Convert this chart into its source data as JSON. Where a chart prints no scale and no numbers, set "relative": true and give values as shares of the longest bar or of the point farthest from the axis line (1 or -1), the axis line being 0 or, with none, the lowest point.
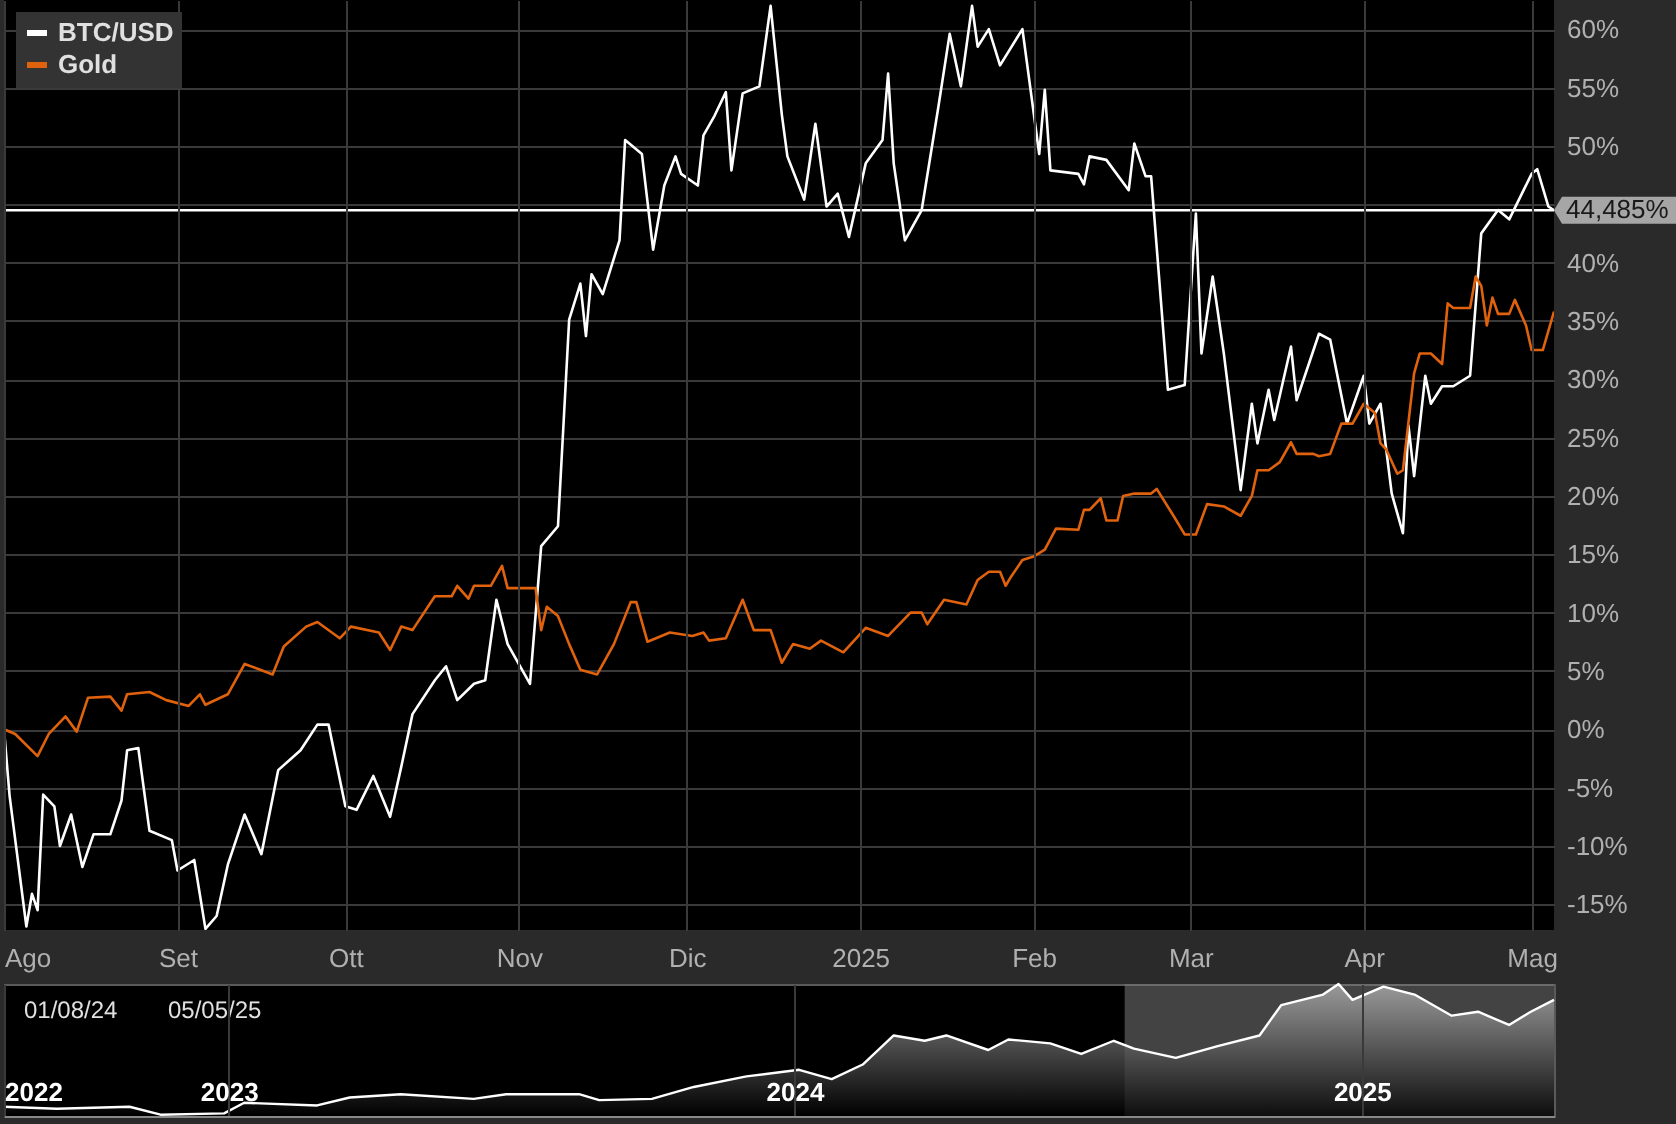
{
  "chart_data": [
    {
      "type": "line",
      "xlim": [
        "2024-08-01",
        "2025-05-05"
      ],
      "ylim": [
        -17.2,
        62.5
      ],
      "xticks": [
        {
          "value": "2024-08-01",
          "label": "Ago"
        },
        {
          "value": "2024-09-01",
          "label": "Set"
        },
        {
          "value": "2024-10-01",
          "label": "Ott"
        },
        {
          "value": "2024-11-01",
          "label": "Nov"
        },
        {
          "value": "2024-12-01",
          "label": "Dic"
        },
        {
          "value": "2025-01-01",
          "label": "2025"
        },
        {
          "value": "2025-02-01",
          "label": "Feb"
        },
        {
          "value": "2025-03-01",
          "label": "Mar"
        },
        {
          "value": "2025-04-01",
          "label": "Apr"
        },
        {
          "value": "2025-05-01",
          "label": "Mag"
        }
      ],
      "yticks": [
        {
          "value": -15,
          "label": "-15%"
        },
        {
          "value": -10,
          "label": "-10%"
        },
        {
          "value": -5,
          "label": "-5%"
        },
        {
          "value": 0,
          "label": "0%"
        },
        {
          "value": 5,
          "label": "5%"
        },
        {
          "value": 10,
          "label": "10%"
        },
        {
          "value": 15,
          "label": "15%"
        },
        {
          "value": 20,
          "label": "20%"
        },
        {
          "value": 25,
          "label": "25%"
        },
        {
          "value": 30,
          "label": "30%"
        },
        {
          "value": 35,
          "label": "35%"
        },
        {
          "value": 40,
          "label": "40%"
        },
        {
          "value": 45,
          "label": null
        },
        {
          "value": 50,
          "label": "50%"
        },
        {
          "value": 55,
          "label": "55%"
        },
        {
          "value": 60,
          "label": "60%"
        }
      ],
      "grid": true,
      "legend": "top left",
      "ref_lines": [
        {
          "axis": "y",
          "value": 44.485,
          "label": "44,485%",
          "color": "#ffffff"
        }
      ],
      "series": [
        {
          "name": "BTC/USD",
          "color": "#ffffff",
          "x": [
            "2024-08-01",
            "2024-08-02",
            "2024-08-05",
            "2024-08-06",
            "2024-08-07",
            "2024-08-08",
            "2024-08-10",
            "2024-08-11",
            "2024-08-13",
            "2024-08-15",
            "2024-08-17",
            "2024-08-20",
            "2024-08-22",
            "2024-08-23",
            "2024-08-25",
            "2024-08-27",
            "2024-08-31",
            "2024-09-01",
            "2024-09-04",
            "2024-09-06",
            "2024-09-08",
            "2024-09-10",
            "2024-09-13",
            "2024-09-16",
            "2024-09-19",
            "2024-09-23",
            "2024-09-26",
            "2024-09-28",
            "2024-10-01",
            "2024-10-03",
            "2024-10-06",
            "2024-10-09",
            "2024-10-11",
            "2024-10-13",
            "2024-10-17",
            "2024-10-19",
            "2024-10-21",
            "2024-10-24",
            "2024-10-26",
            "2024-10-28",
            "2024-10-30",
            "2024-11-03",
            "2024-11-05",
            "2024-11-08",
            "2024-11-10",
            "2024-11-12",
            "2024-11-13",
            "2024-11-14",
            "2024-11-16",
            "2024-11-19",
            "2024-11-20",
            "2024-11-23",
            "2024-11-25",
            "2024-11-27",
            "2024-11-29",
            "2024-11-30",
            "2024-12-03",
            "2024-12-04",
            "2024-12-06",
            "2024-12-08",
            "2024-12-09",
            "2024-12-11",
            "2024-12-14",
            "2024-12-16",
            "2024-12-18",
            "2024-12-19",
            "2024-12-22",
            "2024-12-24",
            "2024-12-26",
            "2024-12-28",
            "2024-12-30",
            "2025-01-02",
            "2025-01-05",
            "2025-01-06",
            "2025-01-07",
            "2025-01-09",
            "2025-01-12",
            "2025-01-15",
            "2025-01-17",
            "2025-01-19",
            "2025-01-21",
            "2025-01-22",
            "2025-01-24",
            "2025-01-26",
            "2025-01-30",
            "2025-02-02",
            "2025-02-03",
            "2025-02-04",
            "2025-02-09",
            "2025-02-10",
            "2025-02-11",
            "2025-02-14",
            "2025-02-18",
            "2025-02-19",
            "2025-02-21",
            "2025-02-22",
            "2025-02-25",
            "2025-02-28",
            "2025-03-02",
            "2025-03-03",
            "2025-03-05",
            "2025-03-07",
            "2025-03-10",
            "2025-03-12",
            "2025-03-13",
            "2025-03-15",
            "2025-03-16",
            "2025-03-19",
            "2025-03-20",
            "2025-03-24",
            "2025-03-26",
            "2025-03-29",
            "2025-04-01",
            "2025-04-02",
            "2025-04-04",
            "2025-04-06",
            "2025-04-08",
            "2025-04-09",
            "2025-04-10",
            "2025-04-12",
            "2025-04-13",
            "2025-04-15",
            "2025-04-17",
            "2025-04-20",
            "2025-04-22",
            "2025-04-25",
            "2025-04-27",
            "2025-05-01",
            "2025-05-02",
            "2025-05-04",
            "2025-05-05"
          ],
          "values": [
            0,
            -5.7,
            -16.9,
            -14.1,
            -15.5,
            -5.6,
            -6.6,
            -10,
            -7.3,
            -11.8,
            -9,
            -9,
            -6.1,
            -1.8,
            -1.6,
            -8.7,
            -9.5,
            -12.1,
            -11.2,
            -17.1,
            -16,
            -11.6,
            -7.3,
            -10.7,
            -3.5,
            -1.8,
            0.4,
            0.4,
            -6.6,
            -6.9,
            -4,
            -7.5,
            -3.2,
            1.3,
            4.2,
            5.4,
            2.5,
            3.9,
            4.2,
            11.1,
            7.3,
            3.9,
            15.7,
            17.4,
            35.1,
            38.2,
            33.7,
            39,
            37.3,
            41.9,
            50.5,
            49.3,
            41.1,
            46.6,
            49.1,
            47.6,
            46.6,
            50.9,
            52.6,
            54.6,
            47.9,
            54.5,
            55.1,
            62,
            52.7,
            49.1,
            45.4,
            51.9,
            44.8,
            45.9,
            42.2,
            48.5,
            50.5,
            56.2,
            48.5,
            41.9,
            44.5,
            53.4,
            59.6,
            55.1,
            62,
            58.5,
            60,
            56.9,
            60,
            49.3,
            54.8,
            47.9,
            47.6,
            46.7,
            49.1,
            48.8,
            46.2,
            50.2,
            47.4,
            47.4,
            29.1,
            29.5,
            44.2,
            32.2,
            38.8,
            32.2,
            20.5,
            27.9,
            24.5,
            29.1,
            26.5,
            32.8,
            28.2,
            33.9,
            33.4,
            26.2,
            30.3,
            26.2,
            27.9,
            20.2,
            16.8,
            26,
            21.7,
            30.3,
            27.9,
            29.4,
            29.4,
            30.3,
            42.5,
            44.5,
            43.7,
            47.6,
            48,
            44.8,
            44.485
          ]
        },
        {
          "name": "Gold",
          "color": "#e0620c",
          "x": [
            "2024-08-01",
            "2024-08-03",
            "2024-08-07",
            "2024-08-09",
            "2024-08-12",
            "2024-08-14",
            "2024-08-16",
            "2024-08-20",
            "2024-08-22",
            "2024-08-23",
            "2024-08-27",
            "2024-08-30",
            "2024-09-03",
            "2024-09-05",
            "2024-09-06",
            "2024-09-10",
            "2024-09-13",
            "2024-09-18",
            "2024-09-20",
            "2024-09-24",
            "2024-09-26",
            "2024-09-30",
            "2024-10-02",
            "2024-10-07",
            "2024-10-09",
            "2024-10-11",
            "2024-10-13",
            "2024-10-17",
            "2024-10-20",
            "2024-10-21",
            "2024-10-23",
            "2024-10-24",
            "2024-10-27",
            "2024-10-29",
            "2024-10-30",
            "2024-11-04",
            "2024-11-05",
            "2024-11-06",
            "2024-11-08",
            "2024-11-10",
            "2024-11-12",
            "2024-11-15",
            "2024-11-18",
            "2024-11-21",
            "2024-11-22",
            "2024-11-24",
            "2024-11-28",
            "2024-12-02",
            "2024-12-04",
            "2024-12-05",
            "2024-12-08",
            "2024-12-11",
            "2024-12-13",
            "2024-12-16",
            "2024-12-18",
            "2024-12-20",
            "2024-12-23",
            "2024-12-25",
            "2024-12-29",
            "2025-01-02",
            "2025-01-06",
            "2025-01-10",
            "2025-01-12",
            "2025-01-13",
            "2025-01-16",
            "2025-01-20",
            "2025-01-22",
            "2025-01-24",
            "2025-01-26",
            "2025-01-27",
            "2025-01-28",
            "2025-01-30",
            "2025-02-01",
            "2025-02-03",
            "2025-02-05",
            "2025-02-09",
            "2025-02-10",
            "2025-02-11",
            "2025-02-13",
            "2025-02-14",
            "2025-02-16",
            "2025-02-17",
            "2025-02-19",
            "2025-02-22",
            "2025-02-23",
            "2025-02-26",
            "2025-02-28",
            "2025-03-02",
            "2025-03-04",
            "2025-03-07",
            "2025-03-10",
            "2025-03-12",
            "2025-03-13",
            "2025-03-15",
            "2025-03-17",
            "2025-03-19",
            "2025-03-20",
            "2025-03-23",
            "2025-03-24",
            "2025-03-26",
            "2025-03-28",
            "2025-03-30",
            "2025-04-01",
            "2025-04-03",
            "2025-04-04",
            "2025-04-05",
            "2025-04-07",
            "2025-04-08",
            "2025-04-10",
            "2025-04-11",
            "2025-04-13",
            "2025-04-15",
            "2025-04-16",
            "2025-04-17",
            "2025-04-20",
            "2025-04-21",
            "2025-04-22",
            "2025-04-23",
            "2025-04-24",
            "2025-04-25",
            "2025-04-27",
            "2025-04-28",
            "2025-04-30",
            "2025-05-01",
            "2025-05-03",
            "2025-05-05"
          ],
          "values": [
            0,
            -0.4,
            -2.3,
            -0.4,
            1.1,
            -0.2,
            2.7,
            2.8,
            1.6,
            3,
            3.2,
            2.5,
            2,
            3,
            2.1,
            3,
            5.6,
            4.7,
            7.1,
            8.8,
            9.2,
            7.8,
            8.8,
            8.3,
            6.8,
            8.8,
            8.5,
            11.4,
            11.4,
            12.3,
            11.2,
            12.3,
            12.3,
            14,
            12.1,
            12.1,
            8.5,
            10.5,
            9.7,
            7.3,
            5.1,
            4.7,
            7.3,
            10.9,
            10.9,
            7.5,
            8.3,
            8,
            8.3,
            7.6,
            7.8,
            11.1,
            8.5,
            8.5,
            5.7,
            7.3,
            6.9,
            7.6,
            6.6,
            8.7,
            8,
            10,
            10,
            9,
            11.1,
            10.7,
            12.8,
            13.5,
            13.5,
            12.3,
            13.1,
            14.5,
            14.8,
            15.4,
            17.2,
            17.1,
            18.8,
            18.8,
            19.8,
            17.9,
            17.9,
            20,
            20.2,
            20.2,
            20.6,
            18.3,
            16.7,
            16.7,
            19.3,
            19.1,
            18.3,
            20,
            22.2,
            22.2,
            22.9,
            24.6,
            23.6,
            23.6,
            23.4,
            23.6,
            26.2,
            26.2,
            27.9,
            27.1,
            24.5,
            24,
            21.9,
            22.2,
            30.5,
            32.2,
            32.2,
            31.3,
            36.5,
            36.1,
            36.1,
            38.8,
            38,
            34.6,
            37,
            35.6,
            35.6,
            36.8,
            34.6,
            32.5,
            32.5,
            35.8
          ]
        }
      ]
    },
    {
      "type": "area",
      "relative": true,
      "xlim": [
        "2022-08-09",
        "2025-05-05"
      ],
      "xticks": [
        {
          "value": "2022-08-09",
          "label": "2022"
        },
        {
          "value": "2023-01-01",
          "label": "2023"
        },
        {
          "value": "2024-01-01",
          "label": "2024"
        },
        {
          "value": "2025-01-01",
          "label": "2025"
        }
      ],
      "grid": "x",
      "bands": [
        {
          "axis": "x",
          "from": "2024-08-01",
          "to": "2025-05-05",
          "color": "#7a7a7a"
        }
      ],
      "annotations": [
        "01/08/24",
        "05/05/25"
      ],
      "series": [
        {
          "color": "#ffffff",
          "x": [
            "2022-08-09",
            "2022-09-12",
            "2022-10-29",
            "2022-11-18",
            "2022-12-29",
            "2023-01-11",
            "2023-02-27",
            "2023-03-20",
            "2023-04-22",
            "2023-06-08",
            "2023-06-29",
            "2023-08-15",
            "2023-08-28",
            "2023-10-01",
            "2023-10-28",
            "2023-12-01",
            "2024-01-04",
            "2024-01-25",
            "2024-02-14",
            "2024-03-05",
            "2024-03-25",
            "2024-04-08",
            "2024-05-05",
            "2024-05-18",
            "2024-06-14",
            "2024-07-04",
            "2024-07-25",
            "2024-08-07",
            "2024-09-03",
            "2024-09-30",
            "2024-10-27",
            "2024-11-10",
            "2024-12-07",
            "2024-12-17",
            "2024-12-26",
            "2025-01-15",
            "2025-02-04",
            "2025-02-28",
            "2025-03-17",
            "2025-04-06",
            "2025-04-20",
            "2025-05-05"
          ],
          "values": [
            0.07,
            0.055,
            0.07,
            0.01,
            0.02,
            0.1,
            0.08,
            0.14,
            0.165,
            0.13,
            0.165,
            0.165,
            0.12,
            0.13,
            0.22,
            0.3,
            0.35,
            0.28,
            0.39,
            0.61,
            0.57,
            0.61,
            0.5,
            0.58,
            0.55,
            0.47,
            0.57,
            0.51,
            0.44,
            0.53,
            0.61,
            0.84,
            0.92,
            1,
            0.88,
            0.98,
            0.92,
            0.76,
            0.79,
            0.69,
            0.79,
            0.88
          ]
        }
      ]
    }
  ]
}
